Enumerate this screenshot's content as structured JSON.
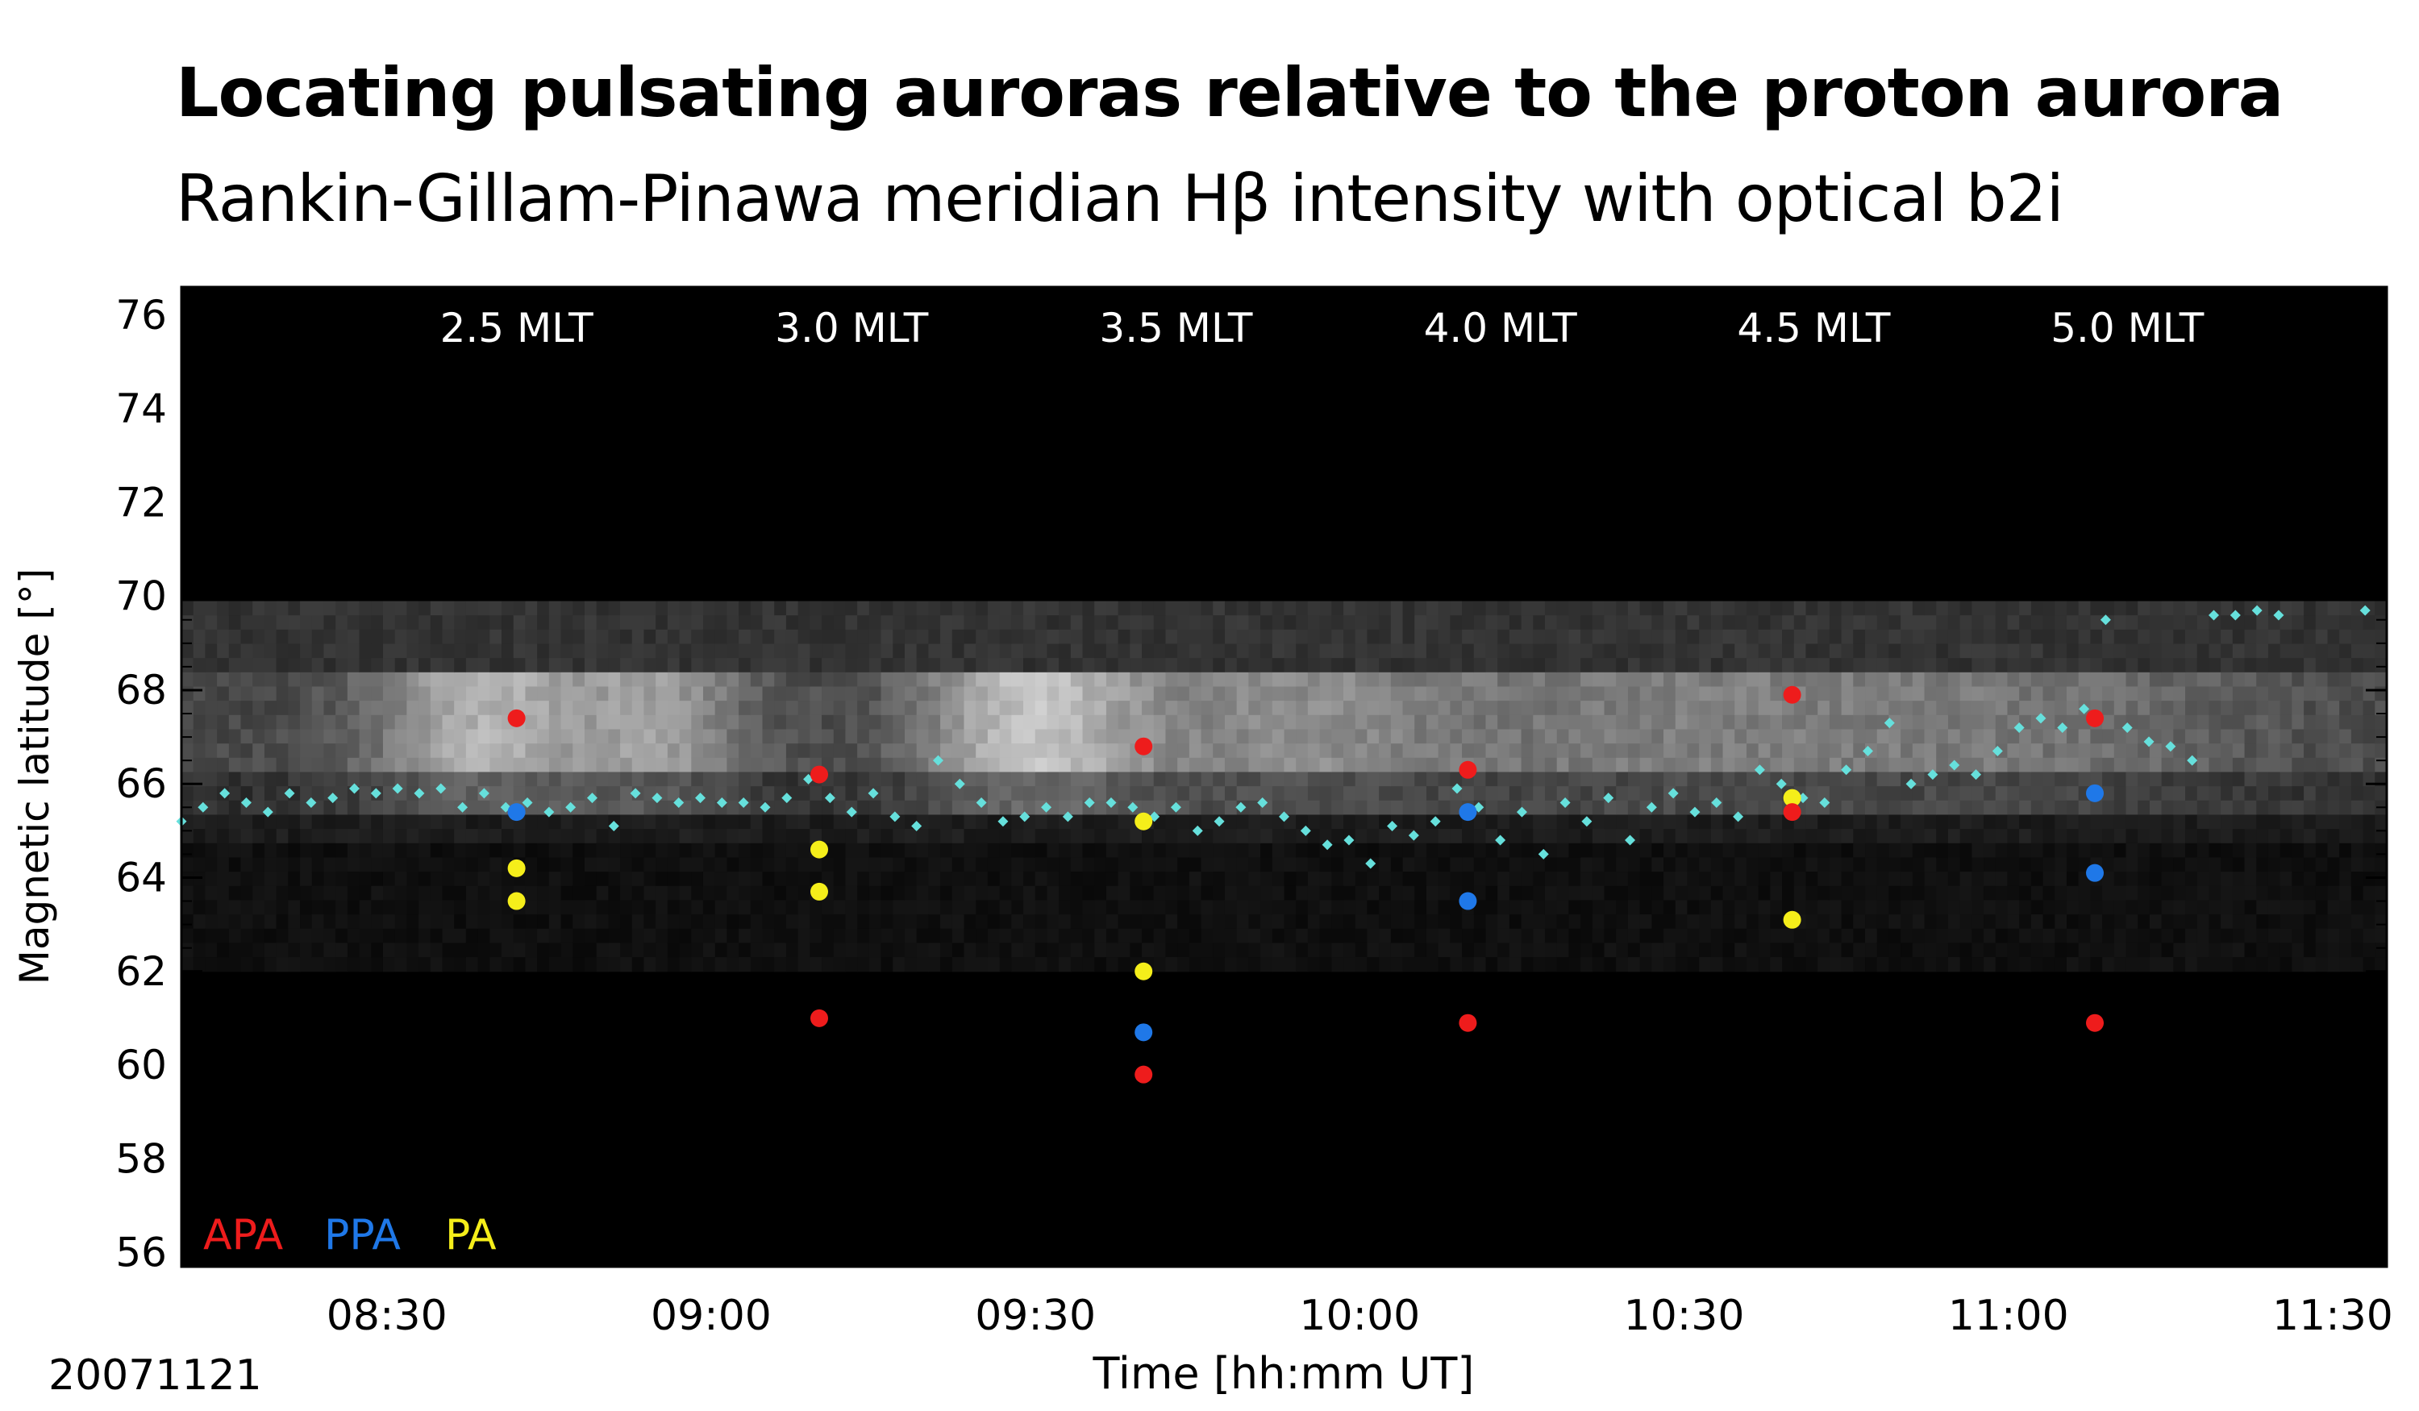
{
  "title": "Locating pulsating auroras relative to the proton aurora",
  "subtitle": "Rankin-Gillam-Pinawa meridian Hβ intensity with optical b2i",
  "date_label": "20071121",
  "colors": {
    "APA": "#ee1c1c",
    "PPA": "#1f78e8",
    "PA": "#f5ee1a",
    "b2i": "#66e0dc",
    "background": "#000000"
  },
  "chart_data": {
    "type": "scatter",
    "xlabel": "Time [hh:mm UT]",
    "ylabel": "Magnetic latitude [°]",
    "xlim": [
      "08:11",
      "11:35"
    ],
    "ylim": [
      55.7,
      76.6
    ],
    "x_ticks": [
      "08:30",
      "09:00",
      "09:30",
      "10:00",
      "10:30",
      "11:00",
      "11:30"
    ],
    "y_ticks": [
      56,
      58,
      60,
      62,
      64,
      66,
      68,
      70,
      72,
      74,
      76
    ],
    "mlt_labels": [
      {
        "time": "08:42",
        "label": "2.5 MLT"
      },
      {
        "time": "09:13",
        "label": "3.0 MLT"
      },
      {
        "time": "09:43",
        "label": "3.5 MLT"
      },
      {
        "time": "10:13",
        "label": "4.0 MLT"
      },
      {
        "time": "10:42",
        "label": "4.5 MLT"
      },
      {
        "time": "11:11",
        "label": "5.0 MLT"
      }
    ],
    "legend": [
      {
        "label": "APA",
        "color": "#ee1c1c"
      },
      {
        "label": "PPA",
        "color": "#1f78e8"
      },
      {
        "label": "PA",
        "color": "#f5ee1a"
      }
    ],
    "legend_position": "bottom-left",
    "series": [
      {
        "name": "APA",
        "color": "#ee1c1c",
        "points": [
          {
            "x": "08:42",
            "y": 67.4
          },
          {
            "x": "09:10",
            "y": 66.2
          },
          {
            "x": "09:10",
            "y": 61.0
          },
          {
            "x": "09:40",
            "y": 66.8
          },
          {
            "x": "09:40",
            "y": 59.8
          },
          {
            "x": "10:10",
            "y": 66.3
          },
          {
            "x": "10:10",
            "y": 60.9
          },
          {
            "x": "10:40",
            "y": 67.9
          },
          {
            "x": "10:40",
            "y": 65.4
          },
          {
            "x": "11:08",
            "y": 67.4
          },
          {
            "x": "11:08",
            "y": 60.9
          }
        ]
      },
      {
        "name": "PPA",
        "color": "#1f78e8",
        "points": [
          {
            "x": "08:42",
            "y": 65.4
          },
          {
            "x": "09:40",
            "y": 60.7
          },
          {
            "x": "10:10",
            "y": 65.4
          },
          {
            "x": "10:10",
            "y": 63.5
          },
          {
            "x": "11:08",
            "y": 65.8
          },
          {
            "x": "11:08",
            "y": 64.1
          }
        ]
      },
      {
        "name": "PA",
        "color": "#f5ee1a",
        "points": [
          {
            "x": "08:42",
            "y": 64.2
          },
          {
            "x": "08:42",
            "y": 63.5
          },
          {
            "x": "09:10",
            "y": 64.6
          },
          {
            "x": "09:10",
            "y": 63.7
          },
          {
            "x": "09:40",
            "y": 65.2
          },
          {
            "x": "09:40",
            "y": 62.0
          },
          {
            "x": "10:40",
            "y": 65.7
          },
          {
            "x": "10:40",
            "y": 63.1
          }
        ]
      },
      {
        "name": "b2i",
        "color": "#66e0dc",
        "points": [
          {
            "x": "08:11",
            "y": 65.2
          },
          {
            "x": "08:13",
            "y": 65.5
          },
          {
            "x": "08:15",
            "y": 65.8
          },
          {
            "x": "08:17",
            "y": 65.6
          },
          {
            "x": "08:19",
            "y": 65.4
          },
          {
            "x": "08:21",
            "y": 65.8
          },
          {
            "x": "08:23",
            "y": 65.6
          },
          {
            "x": "08:25",
            "y": 65.7
          },
          {
            "x": "08:27",
            "y": 65.9
          },
          {
            "x": "08:29",
            "y": 65.8
          },
          {
            "x": "08:31",
            "y": 65.9
          },
          {
            "x": "08:33",
            "y": 65.8
          },
          {
            "x": "08:35",
            "y": 65.9
          },
          {
            "x": "08:37",
            "y": 65.5
          },
          {
            "x": "08:39",
            "y": 65.8
          },
          {
            "x": "08:41",
            "y": 65.5
          },
          {
            "x": "08:43",
            "y": 65.6
          },
          {
            "x": "08:45",
            "y": 65.4
          },
          {
            "x": "08:47",
            "y": 65.5
          },
          {
            "x": "08:49",
            "y": 65.7
          },
          {
            "x": "08:51",
            "y": 65.1
          },
          {
            "x": "08:53",
            "y": 65.8
          },
          {
            "x": "08:55",
            "y": 65.7
          },
          {
            "x": "08:57",
            "y": 65.6
          },
          {
            "x": "08:59",
            "y": 65.7
          },
          {
            "x": "09:01",
            "y": 65.6
          },
          {
            "x": "09:03",
            "y": 65.6
          },
          {
            "x": "09:05",
            "y": 65.5
          },
          {
            "x": "09:07",
            "y": 65.7
          },
          {
            "x": "09:09",
            "y": 66.1
          },
          {
            "x": "09:11",
            "y": 65.7
          },
          {
            "x": "09:13",
            "y": 65.4
          },
          {
            "x": "09:15",
            "y": 65.8
          },
          {
            "x": "09:17",
            "y": 65.3
          },
          {
            "x": "09:19",
            "y": 65.1
          },
          {
            "x": "09:21",
            "y": 66.5
          },
          {
            "x": "09:23",
            "y": 66.0
          },
          {
            "x": "09:25",
            "y": 65.6
          },
          {
            "x": "09:27",
            "y": 65.2
          },
          {
            "x": "09:29",
            "y": 65.3
          },
          {
            "x": "09:31",
            "y": 65.5
          },
          {
            "x": "09:33",
            "y": 65.3
          },
          {
            "x": "09:35",
            "y": 65.6
          },
          {
            "x": "09:37",
            "y": 65.6
          },
          {
            "x": "09:39",
            "y": 65.5
          },
          {
            "x": "09:41",
            "y": 65.3
          },
          {
            "x": "09:43",
            "y": 65.5
          },
          {
            "x": "09:45",
            "y": 65.0
          },
          {
            "x": "09:47",
            "y": 65.2
          },
          {
            "x": "09:49",
            "y": 65.5
          },
          {
            "x": "09:51",
            "y": 65.6
          },
          {
            "x": "09:53",
            "y": 65.3
          },
          {
            "x": "09:55",
            "y": 65.0
          },
          {
            "x": "09:57",
            "y": 64.7
          },
          {
            "x": "09:59",
            "y": 64.8
          },
          {
            "x": "10:01",
            "y": 64.3
          },
          {
            "x": "10:03",
            "y": 65.1
          },
          {
            "x": "10:05",
            "y": 64.9
          },
          {
            "x": "10:07",
            "y": 65.2
          },
          {
            "x": "10:09",
            "y": 65.9
          },
          {
            "x": "10:11",
            "y": 65.5
          },
          {
            "x": "10:13",
            "y": 64.8
          },
          {
            "x": "10:15",
            "y": 65.4
          },
          {
            "x": "10:17",
            "y": 64.5
          },
          {
            "x": "10:19",
            "y": 65.6
          },
          {
            "x": "10:21",
            "y": 65.2
          },
          {
            "x": "10:23",
            "y": 65.7
          },
          {
            "x": "10:25",
            "y": 64.8
          },
          {
            "x": "10:27",
            "y": 65.5
          },
          {
            "x": "10:29",
            "y": 65.8
          },
          {
            "x": "10:31",
            "y": 65.4
          },
          {
            "x": "10:33",
            "y": 65.6
          },
          {
            "x": "10:35",
            "y": 65.3
          },
          {
            "x": "10:37",
            "y": 66.3
          },
          {
            "x": "10:39",
            "y": 66.0
          },
          {
            "x": "10:41",
            "y": 65.7
          },
          {
            "x": "10:43",
            "y": 65.6
          },
          {
            "x": "10:45",
            "y": 66.3
          },
          {
            "x": "10:47",
            "y": 66.7
          },
          {
            "x": "10:49",
            "y": 67.3
          },
          {
            "x": "10:51",
            "y": 66.0
          },
          {
            "x": "10:53",
            "y": 66.2
          },
          {
            "x": "10:55",
            "y": 66.4
          },
          {
            "x": "10:57",
            "y": 66.2
          },
          {
            "x": "10:59",
            "y": 66.7
          },
          {
            "x": "11:01",
            "y": 67.2
          },
          {
            "x": "11:03",
            "y": 67.4
          },
          {
            "x": "11:05",
            "y": 67.2
          },
          {
            "x": "11:07",
            "y": 67.6
          },
          {
            "x": "11:09",
            "y": 69.5
          },
          {
            "x": "11:11",
            "y": 67.2
          },
          {
            "x": "11:13",
            "y": 66.9
          },
          {
            "x": "11:15",
            "y": 66.8
          },
          {
            "x": "11:17",
            "y": 66.5
          },
          {
            "x": "11:19",
            "y": 69.6
          },
          {
            "x": "11:21",
            "y": 69.6
          },
          {
            "x": "11:23",
            "y": 69.7
          },
          {
            "x": "11:25",
            "y": 69.6
          },
          {
            "x": "11:33",
            "y": 69.7
          }
        ]
      }
    ]
  }
}
